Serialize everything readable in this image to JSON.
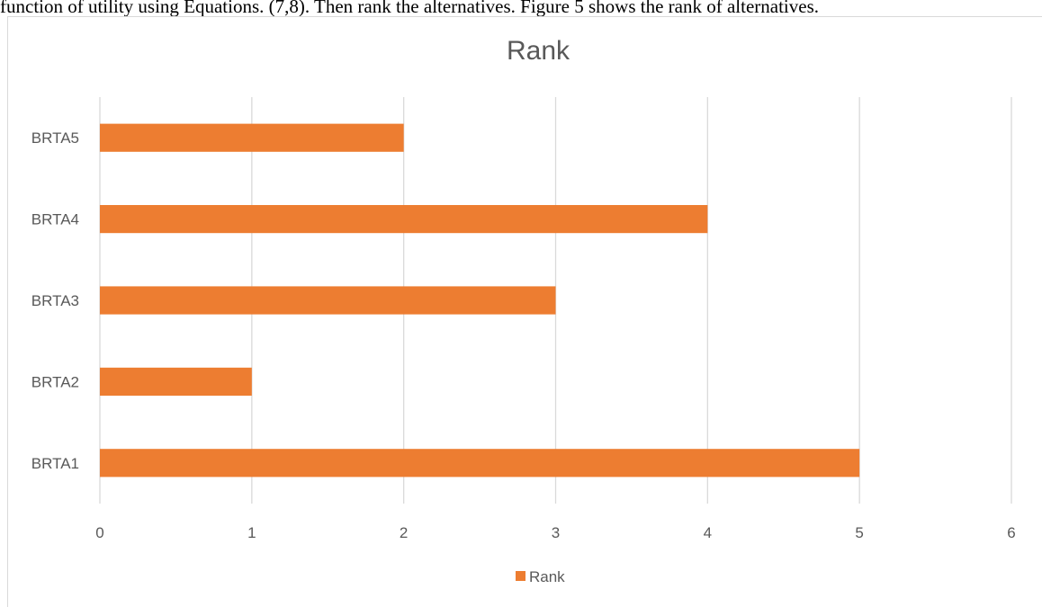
{
  "page": {
    "caption_text": "function of utility using Equations. (7,8). Then rank the alternatives. Figure 5 shows the rank of alternatives."
  },
  "chart_data": {
    "type": "bar",
    "orientation": "horizontal",
    "title": "Rank",
    "categories": [
      "BRTA1",
      "BRTA2",
      "BRTA3",
      "BRTA4",
      "BRTA5"
    ],
    "series": [
      {
        "name": "Rank",
        "values": [
          5,
          1,
          3,
          4,
          2
        ],
        "color": "#ED7D31"
      }
    ],
    "xlim": [
      0,
      6
    ],
    "x_ticks": [
      "0",
      "1",
      "2",
      "3",
      "4",
      "5",
      "6"
    ],
    "grid": "vertical",
    "legend": "bottom"
  }
}
